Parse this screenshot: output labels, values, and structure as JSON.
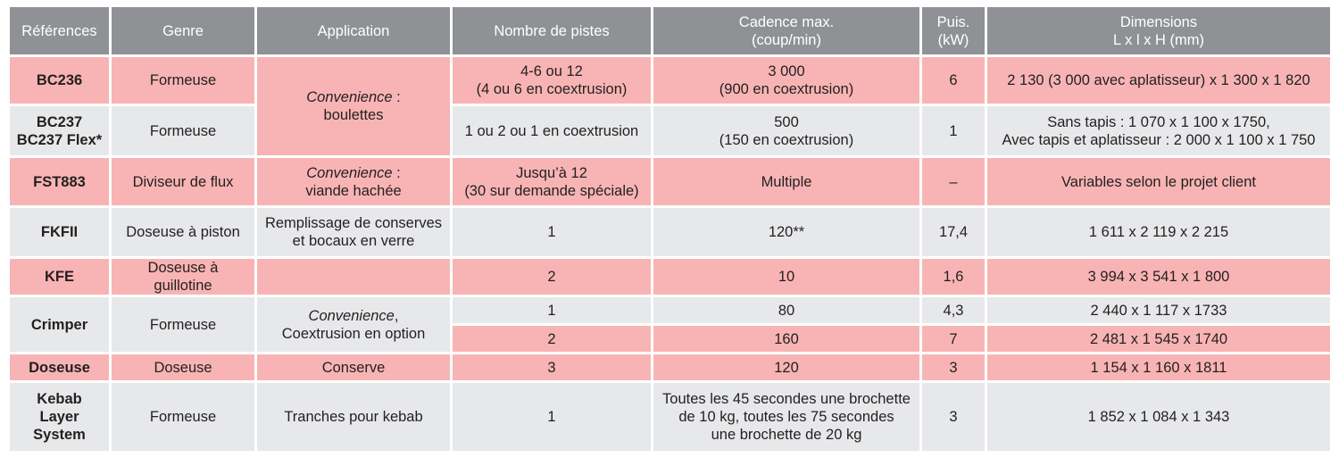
{
  "headers": [
    {
      "lines": [
        "Références"
      ]
    },
    {
      "lines": [
        "Genre"
      ]
    },
    {
      "lines": [
        "Application"
      ]
    },
    {
      "lines": [
        "Nombre de pistes"
      ]
    },
    {
      "lines": [
        "Cadence max.",
        "(coup/min)"
      ]
    },
    {
      "lines": [
        "Puis.",
        "(kW)"
      ]
    },
    {
      "lines": [
        "Dimensions",
        "L x l x H (mm)"
      ]
    }
  ],
  "rows": {
    "bc236": {
      "ref": [
        "BC236"
      ],
      "genre": "Formeuse",
      "pistes": [
        "4-6 ou 12",
        "(4 ou 6 en coextrusion)"
      ],
      "cadence": [
        "3 000",
        "(900 en coextrusion)"
      ],
      "puis": "6",
      "dimensions": [
        "2 130 (3 000 avec aplatisseur) x 1 300 x 1 820"
      ]
    },
    "bc237": {
      "ref": [
        "BC237",
        "BC237 Flex*"
      ],
      "genre": "Formeuse",
      "pistes": [
        "1 ou 2 ou 1 en coextrusion"
      ],
      "cadence": [
        "500",
        "(150 en coextrusion)"
      ],
      "puis": "1",
      "dimensions": [
        "Sans tapis : 1 070 x 1 100 x 1750,",
        "Avec tapis et aplatisseur : 2 000 x 1 100 x 1 750"
      ]
    },
    "bc_application": {
      "italic": "Convenience",
      "suffix": " :",
      "line2": "boulettes"
    },
    "fst883": {
      "ref": [
        "FST883"
      ],
      "genre": "Diviseur de flux",
      "app_italic": "Convenience",
      "app_suffix": " :",
      "app_line2": "viande hachée",
      "pistes": [
        "Jusqu’à 12",
        "(30 sur demande spéciale)"
      ],
      "cadence": [
        "Multiple"
      ],
      "puis": "–",
      "dimensions": [
        "Variables selon le projet client"
      ]
    },
    "fkfii": {
      "ref": [
        "FKFII"
      ],
      "genre": "Doseuse à piston",
      "application": [
        "Remplissage de conserves",
        "et bocaux en verre"
      ],
      "pistes": [
        "1"
      ],
      "cadence": [
        "120**"
      ],
      "puis": "17,4",
      "dimensions": [
        "1 611 x 2 119 x 2 215"
      ]
    },
    "kfe": {
      "ref": [
        "KFE"
      ],
      "genre": "Doseuse à guillotine",
      "application": [],
      "pistes": [
        "2"
      ],
      "cadence": [
        "10"
      ],
      "puis": "1,6",
      "dimensions": [
        "3 994 x 3 541 x 1 800"
      ]
    },
    "crimper": {
      "ref": [
        "Crimper"
      ],
      "genre": "Formeuse",
      "app_italic": "Convenience",
      "app_suffix": ",",
      "app_line2": "Coextrusion en option",
      "variants": [
        {
          "pistes": "1",
          "cadence": "80",
          "puis": "4,3",
          "dimensions": "2 440 x 1 117 x 1733"
        },
        {
          "pistes": "2",
          "cadence": "160",
          "puis": "7",
          "dimensions": "2 481 x 1 545 x 1740"
        }
      ]
    },
    "doseuse": {
      "ref": [
        "Doseuse"
      ],
      "genre": "Doseuse",
      "application": [
        "Conserve"
      ],
      "pistes": [
        "3"
      ],
      "cadence": [
        "120"
      ],
      "puis": "3",
      "dimensions": [
        "1 154 x 1 160 x 1811"
      ]
    },
    "kebab": {
      "ref": [
        "Kebab",
        "Layer",
        "System"
      ],
      "genre": "Formeuse",
      "application": [
        "Tranches pour kebab"
      ],
      "pistes": [
        "1"
      ],
      "cadence": [
        "Toutes les 45 secondes une brochette",
        "de 10 kg, toutes les 75 secondes",
        "une brochette de 20 kg"
      ],
      "puis": "3",
      "dimensions": [
        "1 852 x 1 084 x 1 343"
      ]
    }
  },
  "colors": {
    "header": "#8f9194",
    "highlight_row": "#f8b4b4",
    "plain_row": "#e7e8ea"
  }
}
